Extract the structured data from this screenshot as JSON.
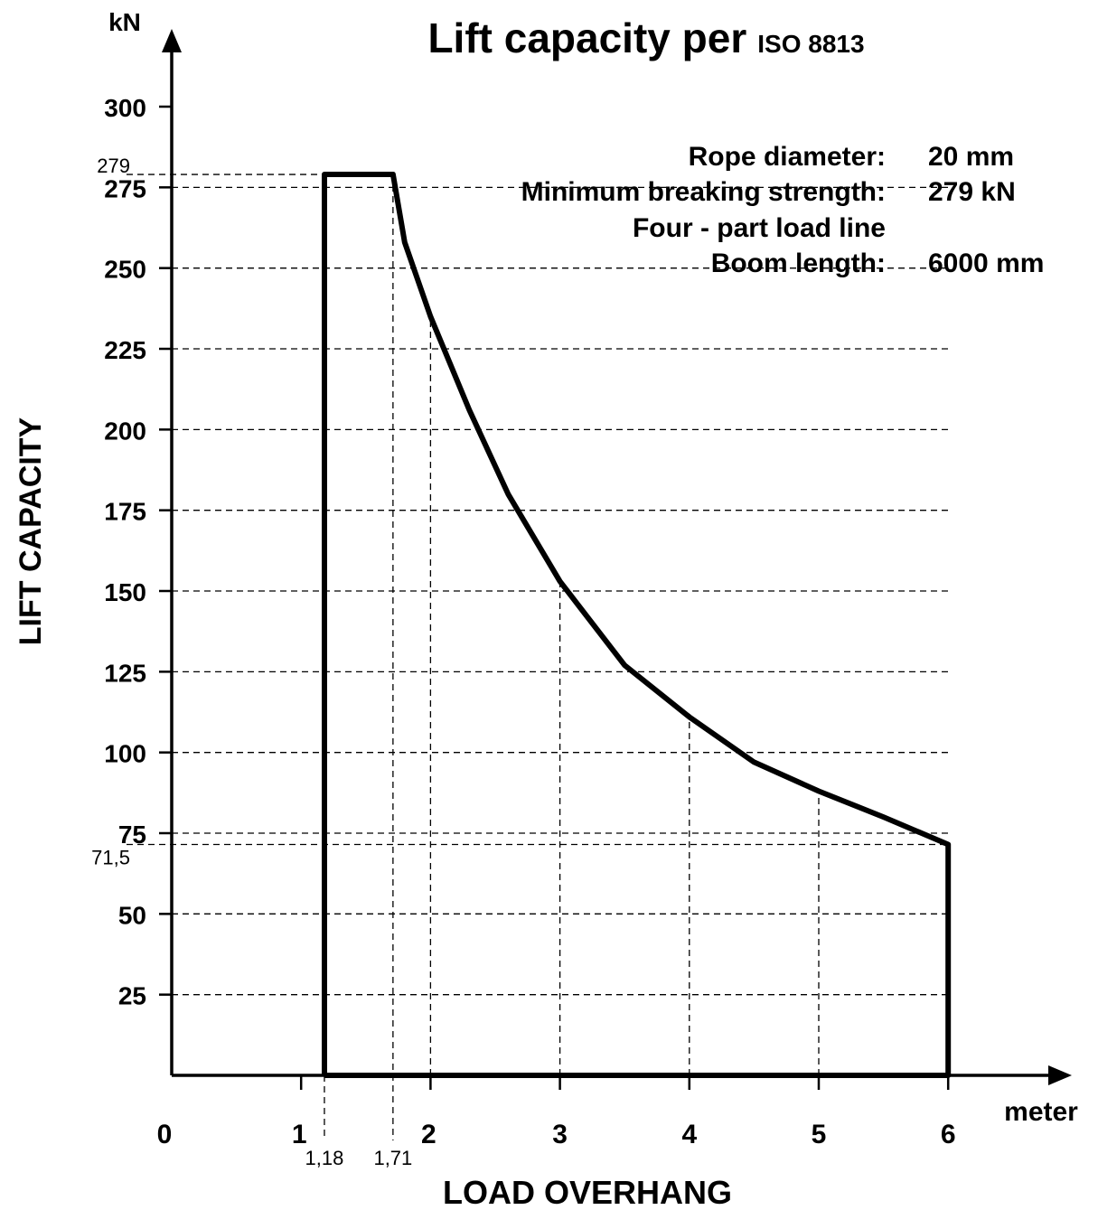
{
  "chart_data": {
    "type": "line",
    "title": "Lift capacity per",
    "title_suffix": "ISO 8813",
    "ylabel": "LIFT CAPACITY",
    "yunit": "kN",
    "xlabel": "LOAD OVERHANG",
    "xunit": "meter",
    "xlim": [
      0,
      6
    ],
    "ylim": [
      0,
      300
    ],
    "xticks": [
      0,
      1,
      2,
      3,
      4,
      5,
      6
    ],
    "xtick_labels": [
      "0",
      "1",
      "2",
      "3",
      "4",
      "5",
      "6"
    ],
    "yticks": [
      25,
      50,
      75,
      100,
      125,
      150,
      175,
      200,
      225,
      250,
      275,
      300
    ],
    "ytick_labels": [
      "25",
      "50",
      "75",
      "100",
      "125",
      "150",
      "175",
      "200",
      "225",
      "250",
      "275",
      "300"
    ],
    "grid": true,
    "x_annotations": [
      {
        "value": 1.18,
        "label": "1,18"
      },
      {
        "value": 1.71,
        "label": "1,71"
      }
    ],
    "y_annotations": [
      {
        "value": 279,
        "label": "279"
      },
      {
        "value": 71.5,
        "label": "71,5"
      }
    ],
    "series": [
      {
        "x": [
          1.18,
          1.18,
          1.71,
          1.8,
          2.0,
          2.3,
          2.6,
          3.0,
          3.5,
          4.0,
          4.5,
          5.0,
          5.5,
          6.0,
          6.0,
          1.18
        ],
        "y": [
          0,
          279,
          279,
          258,
          235,
          206,
          180,
          153,
          127,
          111,
          97,
          88,
          80,
          71.5,
          0,
          0
        ]
      }
    ],
    "info": [
      {
        "label": "Rope diameter:",
        "value": "20 mm"
      },
      {
        "label": "Minimum breaking strength:",
        "value": "279 kN"
      },
      {
        "label": "Four - part load line",
        "value": ""
      },
      {
        "label": "Boom length:",
        "value": "6000 mm"
      }
    ]
  }
}
